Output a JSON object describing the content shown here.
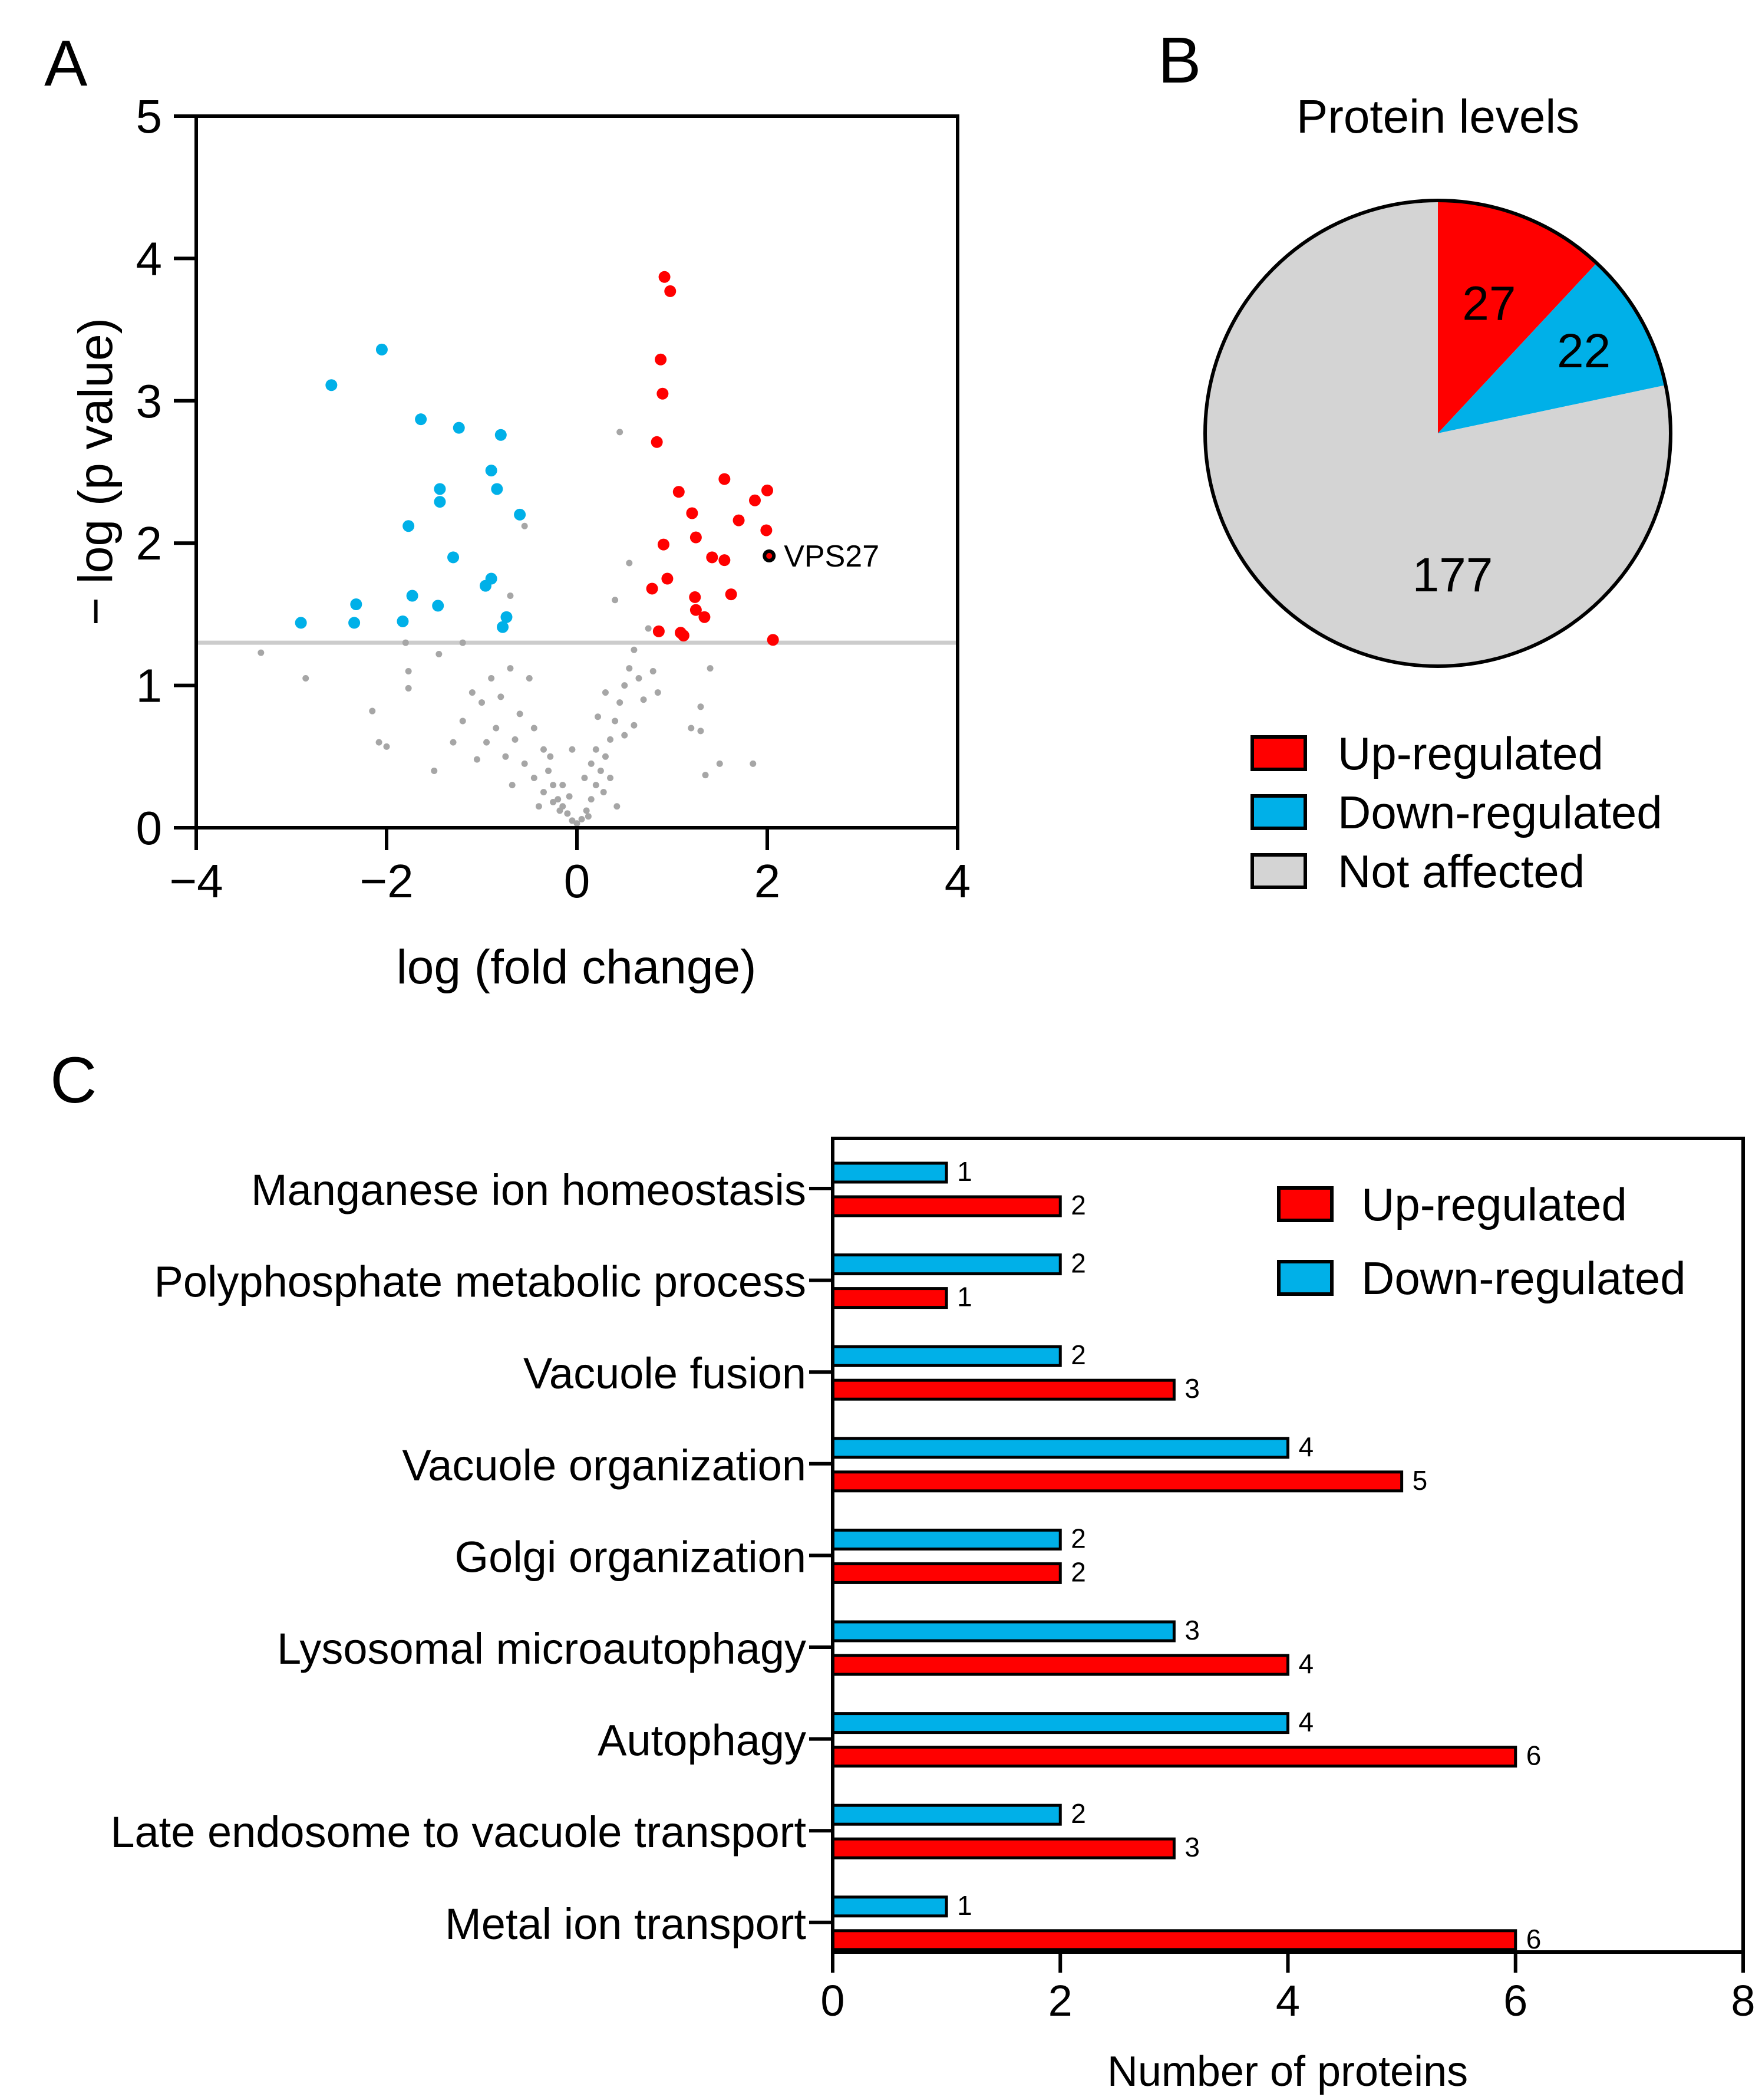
{
  "colors": {
    "up": "#ff0000",
    "down": "#00b0e8",
    "not_affected": "#d4d4d4",
    "grey_points": "#a6a6a6",
    "threshold_line": "#cccccc"
  },
  "chart_data": [
    {
      "panel": "A",
      "type": "scatter",
      "title": "",
      "xlabel": "log (fold change)",
      "ylabel": "− log (p value)",
      "xlim": [
        -4,
        4
      ],
      "ylim": [
        0,
        5
      ],
      "xticks": [
        -4,
        -2,
        0,
        2,
        4
      ],
      "xtick_labels": [
        "−4",
        "−2",
        "0",
        "2",
        "4"
      ],
      "yticks": [
        0,
        1,
        2,
        3,
        4,
        5
      ],
      "ytick_labels": [
        "0",
        "1",
        "2",
        "3",
        "4",
        "5"
      ],
      "significance_threshold": 1.3,
      "annotation": {
        "label": "VPS27",
        "x": 2.02,
        "y": 1.91
      },
      "series": [
        {
          "name": "Up-regulated",
          "points": [
            [
              0.92,
              3.87
            ],
            [
              0.98,
              3.77
            ],
            [
              0.88,
              3.29
            ],
            [
              0.9,
              3.05
            ],
            [
              0.84,
              2.71
            ],
            [
              1.55,
              2.45
            ],
            [
              2.0,
              2.37
            ],
            [
              1.07,
              2.36
            ],
            [
              1.87,
              2.3
            ],
            [
              1.21,
              2.21
            ],
            [
              1.99,
              2.09
            ],
            [
              1.25,
              2.04
            ],
            [
              0.91,
              1.99
            ],
            [
              0.79,
              1.68
            ],
            [
              1.62,
              1.64
            ],
            [
              1.24,
              1.62
            ],
            [
              1.25,
              1.53
            ],
            [
              1.34,
              1.48
            ],
            [
              0.86,
              1.38
            ],
            [
              1.09,
              1.37
            ],
            [
              1.12,
              1.35
            ],
            [
              2.06,
              1.32
            ],
            [
              1.42,
              1.9
            ],
            [
              0.95,
              1.75
            ],
            [
              1.55,
              1.88
            ],
            [
              1.7,
              2.16
            ]
          ]
        },
        {
          "name": "Down-regulated",
          "points": [
            [
              -2.05,
              3.36
            ],
            [
              -2.58,
              3.11
            ],
            [
              -1.64,
              2.87
            ],
            [
              -1.24,
              2.81
            ],
            [
              -0.8,
              2.76
            ],
            [
              -0.9,
              2.51
            ],
            [
              -1.44,
              2.38
            ],
            [
              -0.84,
              2.38
            ],
            [
              -1.44,
              2.29
            ],
            [
              -0.6,
              2.2
            ],
            [
              -1.77,
              2.12
            ],
            [
              -0.9,
              1.75
            ],
            [
              -0.96,
              1.7
            ],
            [
              -1.73,
              1.63
            ],
            [
              -2.32,
              1.57
            ],
            [
              -1.46,
              1.56
            ],
            [
              -0.74,
              1.48
            ],
            [
              -2.9,
              1.44
            ],
            [
              -2.34,
              1.44
            ],
            [
              -1.83,
              1.45
            ],
            [
              -0.78,
              1.41
            ],
            [
              -1.3,
              1.9
            ]
          ]
        },
        {
          "name": "Not affected",
          "points": [
            [
              0.45,
              2.78
            ],
            [
              -0.55,
              2.12
            ],
            [
              0.55,
              1.86
            ],
            [
              0.4,
              1.6
            ],
            [
              -0.7,
              1.63
            ],
            [
              -3.32,
              1.23
            ],
            [
              -2.85,
              1.05
            ],
            [
              -2.15,
              0.82
            ],
            [
              -2.08,
              0.6
            ],
            [
              -2.0,
              0.57
            ],
            [
              -1.8,
              1.3
            ],
            [
              -1.77,
              0.98
            ],
            [
              -1.77,
              1.1
            ],
            [
              -1.45,
              1.22
            ],
            [
              -1.2,
              1.3
            ],
            [
              -1.1,
              0.95
            ],
            [
              -1.0,
              0.88
            ],
            [
              -0.9,
              1.05
            ],
            [
              -0.8,
              0.92
            ],
            [
              -0.7,
              1.12
            ],
            [
              -0.6,
              0.8
            ],
            [
              -0.5,
              1.05
            ],
            [
              -0.45,
              0.7
            ],
            [
              -0.35,
              0.55
            ],
            [
              -0.3,
              0.4
            ],
            [
              -0.25,
              0.3
            ],
            [
              -0.2,
              0.2
            ],
            [
              -0.15,
              0.15
            ],
            [
              -0.1,
              0.1
            ],
            [
              -0.05,
              0.05
            ],
            [
              0.0,
              0.03
            ],
            [
              0.05,
              0.06
            ],
            [
              0.1,
              0.12
            ],
            [
              0.15,
              0.2
            ],
            [
              0.2,
              0.3
            ],
            [
              0.25,
              0.4
            ],
            [
              0.3,
              0.5
            ],
            [
              0.35,
              0.62
            ],
            [
              0.4,
              0.75
            ],
            [
              0.45,
              0.88
            ],
            [
              0.5,
              1.0
            ],
            [
              0.55,
              1.12
            ],
            [
              0.6,
              1.25
            ],
            [
              0.65,
              1.05
            ],
            [
              0.7,
              0.9
            ],
            [
              0.75,
              1.4
            ],
            [
              0.8,
              1.1
            ],
            [
              0.85,
              0.95
            ],
            [
              1.2,
              0.7
            ],
            [
              1.3,
              0.68
            ],
            [
              1.35,
              0.37
            ],
            [
              1.4,
              1.12
            ],
            [
              1.5,
              0.45
            ],
            [
              1.85,
              0.45
            ],
            [
              1.3,
              0.85
            ],
            [
              -1.3,
              0.6
            ],
            [
              -1.2,
              0.75
            ],
            [
              -0.95,
              0.6
            ],
            [
              -0.85,
              0.7
            ],
            [
              -0.75,
              0.5
            ],
            [
              -0.65,
              0.62
            ],
            [
              -0.55,
              0.45
            ],
            [
              -0.45,
              0.35
            ],
            [
              -0.35,
              0.25
            ],
            [
              -0.25,
              0.18
            ],
            [
              -0.15,
              0.3
            ],
            [
              0.15,
              0.45
            ],
            [
              0.2,
              0.55
            ],
            [
              0.28,
              0.25
            ],
            [
              0.35,
              0.35
            ],
            [
              0.42,
              0.15
            ],
            [
              0.5,
              0.65
            ],
            [
              0.6,
              0.72
            ],
            [
              0.12,
              0.08
            ],
            [
              -0.08,
              0.22
            ],
            [
              -0.18,
              0.12
            ],
            [
              -0.4,
              0.15
            ],
            [
              -0.28,
              0.5
            ],
            [
              0.08,
              0.35
            ],
            [
              0.3,
              0.95
            ],
            [
              -1.05,
              0.48
            ],
            [
              -0.68,
              0.3
            ],
            [
              -1.5,
              0.4
            ],
            [
              -0.05,
              0.55
            ],
            [
              0.22,
              0.78
            ]
          ]
        }
      ]
    },
    {
      "panel": "B",
      "type": "pie",
      "title": "Protein levels",
      "slices": [
        {
          "label": "Up-regulated",
          "value": 27
        },
        {
          "label": "Down-regulated",
          "value": 22
        },
        {
          "label": "Not affected",
          "value": 177
        }
      ]
    },
    {
      "panel": "C",
      "type": "bar",
      "orientation": "horizontal",
      "xlabel": "Number of proteins",
      "xlim": [
        0,
        8
      ],
      "xticks": [
        0,
        2,
        4,
        6,
        8
      ],
      "xtick_labels": [
        "0",
        "2",
        "4",
        "6",
        "8"
      ],
      "categories": [
        "Manganese ion homeostasis",
        "Polyphosphate metabolic process",
        "Vacuole fusion",
        "Vacuole organization",
        "Golgi organization",
        "Lysosomal microautophagy",
        "Autophagy",
        "Late endosome to vacuole transport",
        "Metal ion transport"
      ],
      "series": [
        {
          "name": "Down-regulated",
          "values": [
            1,
            2,
            2,
            4,
            2,
            3,
            4,
            2,
            1
          ]
        },
        {
          "name": "Up-regulated",
          "values": [
            2,
            1,
            3,
            5,
            2,
            4,
            6,
            3,
            6
          ]
        }
      ],
      "legend_position": "top-right"
    }
  ],
  "panel_labels": {
    "a": "A",
    "b": "B",
    "c": "C"
  },
  "legend_b": [
    "Up-regulated",
    "Down-regulated",
    "Not affected"
  ],
  "legend_c": [
    "Up-regulated",
    "Down-regulated"
  ]
}
